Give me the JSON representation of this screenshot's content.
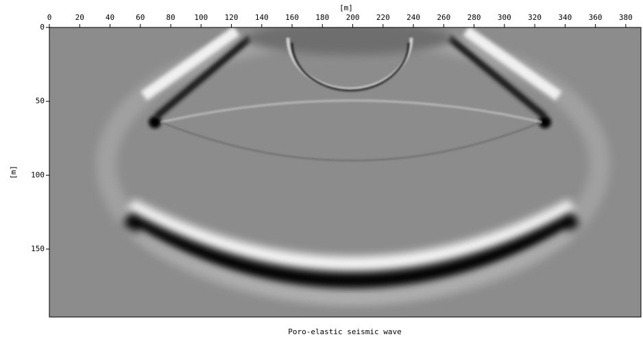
{
  "chart_data": {
    "type": "image",
    "title": "Poro-elastic seismic wave",
    "x_label": "[m]",
    "y_label": "[m]",
    "xlim": [
      0,
      390
    ],
    "xticks": [
      0,
      20,
      40,
      60,
      80,
      100,
      120,
      140,
      160,
      180,
      200,
      220,
      240,
      260,
      280,
      300,
      320,
      340,
      360,
      380
    ],
    "ylim": [
      0,
      196
    ],
    "yticks": [
      0,
      50,
      100,
      150
    ],
    "y_inverted": true
  }
}
